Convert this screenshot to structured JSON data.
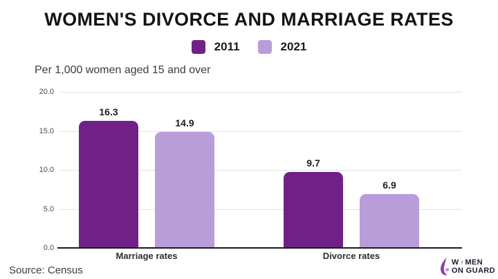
{
  "header": {
    "title": "WOMEN'S DIVORCE AND MARRIAGE RATES",
    "subtitle": "Per 1,000 women aged 15 and over"
  },
  "legend": [
    {
      "label": "2011",
      "color": "#702187"
    },
    {
      "label": "2021",
      "color": "#b89dd9"
    }
  ],
  "colors": {
    "series_2011": "#702187",
    "series_2021": "#b89dd9",
    "grid": "#e2e2e2",
    "axis": "#1a1a1a",
    "logo_accent": "#8b3fa8"
  },
  "chart_data": {
    "type": "bar",
    "categories": [
      "Marriage rates",
      "Divorce rates"
    ],
    "series": [
      {
        "name": "2011",
        "color": "#702187",
        "values": [
          16.3,
          9.7
        ]
      },
      {
        "name": "2021",
        "color": "#b89dd9",
        "values": [
          14.9,
          6.9
        ]
      }
    ],
    "title": "WOMEN'S DIVORCE AND MARRIAGE RATES",
    "subtitle": "Per 1,000 women aged 15 and over",
    "xlabel": "",
    "ylabel": "Per 1,000 women aged 15 and over",
    "ylim": [
      0,
      20
    ],
    "yticks": [
      0,
      5,
      10,
      15,
      20
    ],
    "ytick_labels": [
      "0.0",
      "5.0",
      "10.0",
      "15.0",
      "20.0"
    ],
    "grid": true,
    "legend_position": "top",
    "value_labels": [
      "16.3",
      "14.9",
      "9.7",
      "6.9"
    ],
    "source": "Source: Census"
  },
  "footer": {
    "source": "Source: Census",
    "logo": {
      "word_start": "W",
      "word_symbol": "♀",
      "word_end": "MEN",
      "line2": "ON GUARD"
    }
  }
}
